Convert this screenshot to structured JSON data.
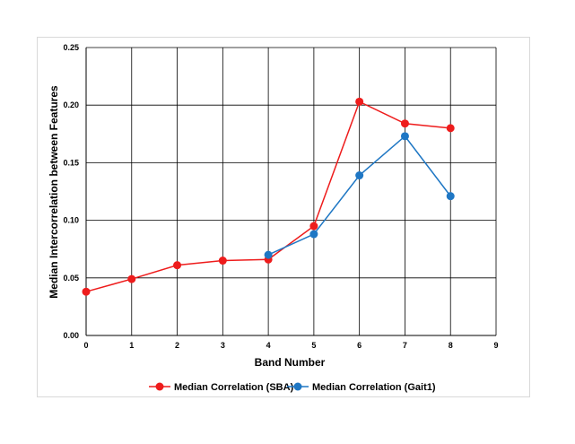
{
  "chart_data": {
    "type": "line",
    "title": "",
    "xlabel": "Band Number",
    "ylabel": "Median Intercorrelation between Features",
    "xlim": [
      0,
      9
    ],
    "ylim": [
      0,
      0.25
    ],
    "x_ticks": [
      "0",
      "1",
      "2",
      "3",
      "4",
      "5",
      "6",
      "7",
      "8",
      "9"
    ],
    "y_ticks": [
      "0.00",
      "0.05",
      "0.10",
      "0.15",
      "0.20",
      "0.25"
    ],
    "grid": true,
    "legend_position": "bottom",
    "series": [
      {
        "name": "Median Correlation (SBA)",
        "color": "#ee1c1c",
        "x": [
          0,
          1,
          2,
          3,
          4,
          5,
          6,
          7,
          8
        ],
        "y": [
          0.038,
          0.049,
          0.061,
          0.065,
          0.066,
          0.095,
          0.203,
          0.184,
          0.18
        ]
      },
      {
        "name": "Median Correlation (Gait1)",
        "color": "#1f77c4",
        "x": [
          4,
          5,
          6,
          7,
          8
        ],
        "y": [
          0.07,
          0.088,
          0.139,
          0.173,
          0.121
        ]
      }
    ]
  }
}
